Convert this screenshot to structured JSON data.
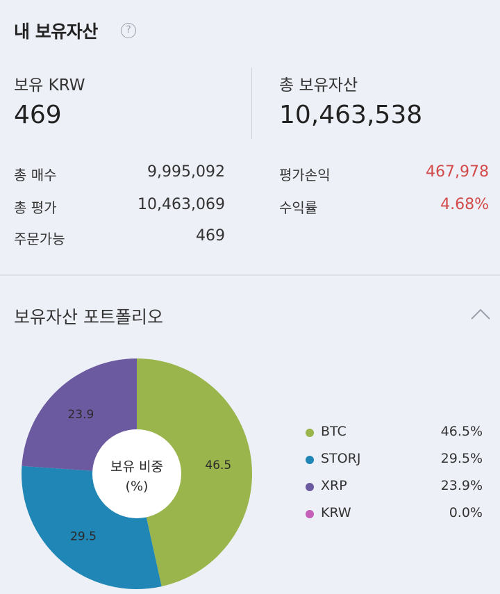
{
  "header": {
    "title": "내 보유자산",
    "help_icon": "question-circle-icon"
  },
  "summary": {
    "krw_label": "보유 KRW",
    "krw_value": "469",
    "total_label": "총 보유자산",
    "total_value": "10,463,538"
  },
  "details": {
    "total_buy_label": "총 매수",
    "total_buy_value": "9,995,092",
    "total_eval_label": "총 평가",
    "total_eval_value": "10,463,069",
    "orderable_label": "주문가능",
    "orderable_value": "469",
    "pnl_label": "평가손익",
    "pnl_value": "467,978",
    "return_label": "수익률",
    "return_value": "4.68%"
  },
  "colors": {
    "profit": "#d24a4a",
    "background": "#eef0f7"
  },
  "portfolio": {
    "title": "보유자산 포트폴리오",
    "collapse_icon": "chevron-up-icon",
    "center_line1": "보유 비중",
    "center_line2": "(%)"
  },
  "chart_data": {
    "type": "pie",
    "categories": [
      "BTC",
      "STORJ",
      "XRP",
      "KRW"
    ],
    "values": [
      46.5,
      29.5,
      23.9,
      0.0
    ],
    "slice_labels": [
      "46.5",
      "29.5",
      "23.9",
      ""
    ],
    "legend_values": [
      "46.5%",
      "29.5%",
      "23.9%",
      "0.0%"
    ],
    "colors": [
      "#99b54c",
      "#1f86b5",
      "#6c5aa1",
      "#c55fb7"
    ],
    "legend": "right"
  }
}
